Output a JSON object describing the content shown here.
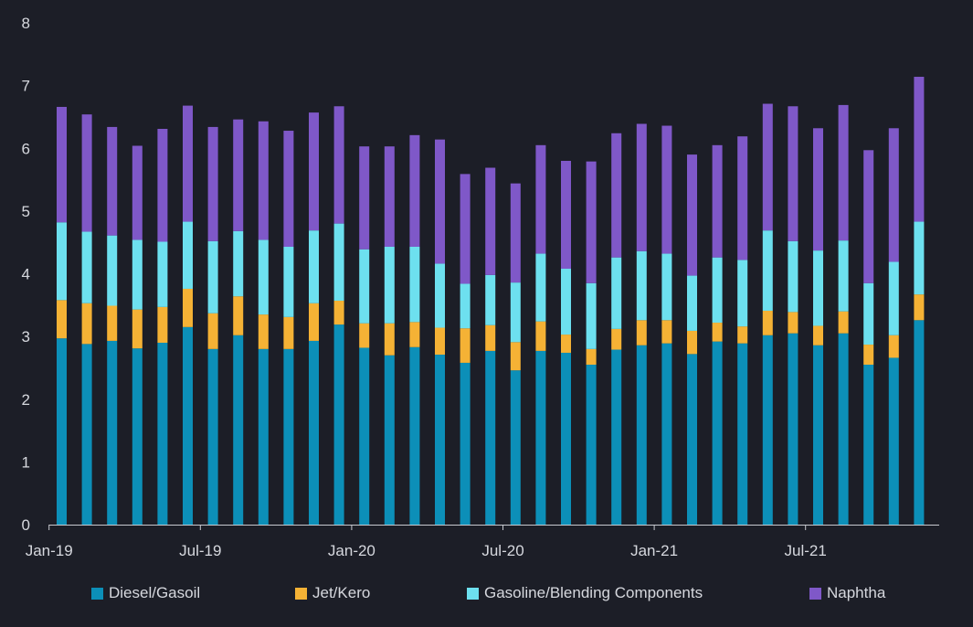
{
  "chart_data": {
    "type": "bar",
    "stacked": true,
    "title": "",
    "xlabel": "",
    "ylabel": "",
    "ylim": [
      0,
      8
    ],
    "yticks": [
      "0",
      "1",
      "2",
      "3",
      "4",
      "5",
      "6",
      "7",
      "8"
    ],
    "grid": false,
    "legend_position": "bottom",
    "x_tick_labels": [
      "Jan-19",
      "Jul-19",
      "Jan-20",
      "Jul-20",
      "Jan-21",
      "Jul-21"
    ],
    "categories": [
      "Jan-19",
      "Feb-19",
      "Mar-19",
      "Apr-19",
      "May-19",
      "Jun-19",
      "Jul-19",
      "Aug-19",
      "Sep-19",
      "Oct-19",
      "Nov-19",
      "Dec-19",
      "Jan-20",
      "Feb-20",
      "Mar-20",
      "Apr-20",
      "May-20",
      "Jun-20",
      "Jul-20",
      "Aug-20",
      "Sep-20",
      "Oct-20",
      "Nov-20",
      "Dec-20",
      "Jan-21",
      "Feb-21",
      "Mar-21",
      "Apr-21",
      "May-21",
      "Jun-21",
      "Jul-21",
      "Aug-21",
      "Sep-21",
      "Oct-21",
      "Nov-21"
    ],
    "series": [
      {
        "name": "Diesel/Gasoil",
        "color": "#0c8fb8",
        "values": [
          2.97,
          2.88,
          2.93,
          2.81,
          2.9,
          3.15,
          2.8,
          3.02,
          2.8,
          2.8,
          2.93,
          3.19,
          2.82,
          2.7,
          2.83,
          2.71,
          2.58,
          2.77,
          2.46,
          2.77,
          2.74,
          2.55,
          2.79,
          2.86,
          2.89,
          2.72,
          2.92,
          2.89,
          3.02,
          3.05,
          2.86,
          3.05,
          2.55,
          2.66,
          3.26
        ]
      },
      {
        "name": "Jet/Kero",
        "color": "#f5b235",
        "values": [
          0.61,
          0.65,
          0.56,
          0.62,
          0.57,
          0.61,
          0.57,
          0.62,
          0.55,
          0.51,
          0.6,
          0.38,
          0.39,
          0.51,
          0.4,
          0.43,
          0.55,
          0.41,
          0.45,
          0.47,
          0.29,
          0.25,
          0.33,
          0.4,
          0.37,
          0.37,
          0.3,
          0.27,
          0.39,
          0.34,
          0.31,
          0.35,
          0.32,
          0.36,
          0.41
        ]
      },
      {
        "name": "Gasoline/Blending Components",
        "color": "#6de0ef",
        "values": [
          1.24,
          1.14,
          1.12,
          1.11,
          1.04,
          1.07,
          1.15,
          1.04,
          1.19,
          1.12,
          1.16,
          1.23,
          1.18,
          1.22,
          1.2,
          1.02,
          0.71,
          0.8,
          0.95,
          1.08,
          1.05,
          1.05,
          1.14,
          1.1,
          1.06,
          0.88,
          1.04,
          1.06,
          1.28,
          1.13,
          1.2,
          1.13,
          0.98,
          1.17,
          1.16
        ]
      },
      {
        "name": "Naphtha",
        "color": "#7f58c8",
        "values": [
          1.84,
          1.87,
          1.73,
          1.5,
          1.8,
          1.85,
          1.82,
          1.78,
          1.89,
          1.85,
          1.88,
          1.87,
          1.64,
          1.6,
          1.78,
          1.98,
          1.75,
          1.71,
          1.58,
          1.73,
          1.72,
          1.94,
          1.98,
          2.03,
          2.04,
          1.93,
          1.79,
          1.97,
          2.02,
          2.15,
          1.95,
          2.16,
          2.12,
          2.13,
          2.31
        ]
      }
    ]
  }
}
